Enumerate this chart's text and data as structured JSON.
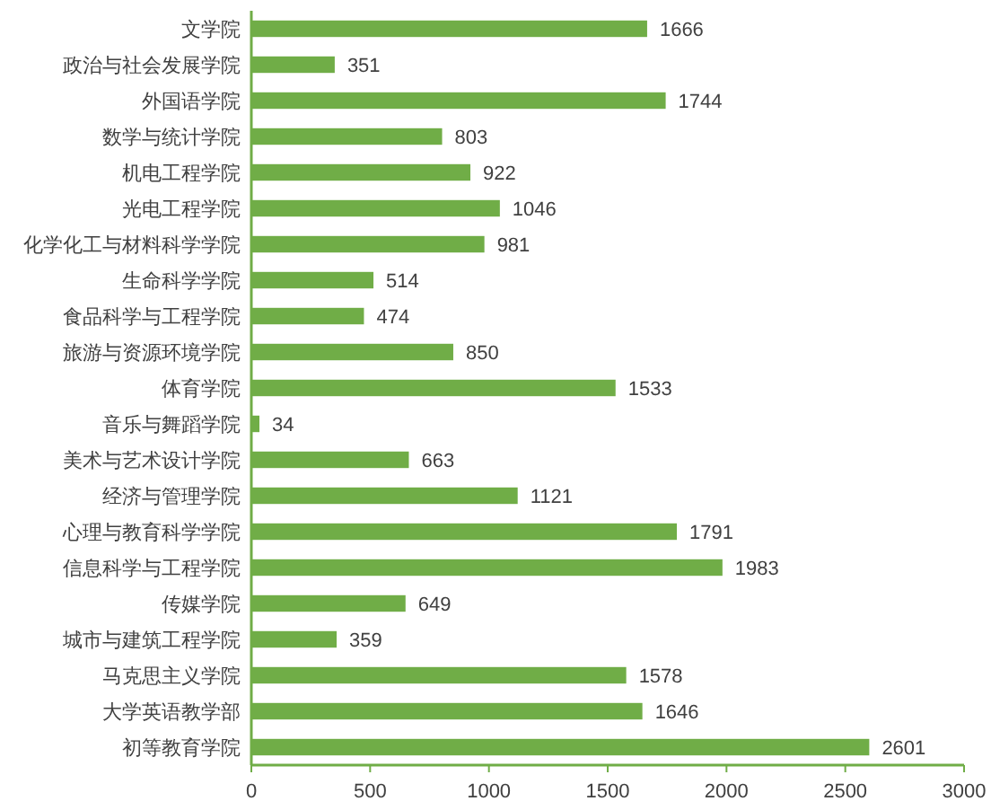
{
  "chart_data": {
    "type": "bar",
    "orientation": "horizontal",
    "categories": [
      "文学院",
      "政治与社会发展学院",
      "外国语学院",
      "数学与统计学院",
      "机电工程学院",
      "光电工程学院",
      "化学化工与材料科学学院",
      "生命科学学院",
      "食品科学与工程学院",
      "旅游与资源环境学院",
      "体育学院",
      "音乐与舞蹈学院",
      "美术与艺术设计学院",
      "经济与管理学院",
      "心理与教育科学学院",
      "信息科学与工程学院",
      "传媒学院",
      "城市与建筑工程学院",
      "马克思主义学院",
      "大学英语教学部",
      "初等教育学院"
    ],
    "values": [
      1666,
      351,
      1744,
      803,
      922,
      1046,
      981,
      514,
      474,
      850,
      1533,
      34,
      663,
      1121,
      1791,
      1983,
      649,
      359,
      1578,
      1646,
      2601
    ],
    "color": "#70ad47",
    "xlim": [
      0,
      3000
    ],
    "xticks": [
      0,
      500,
      1000,
      1500,
      2000,
      2500,
      3000
    ],
    "data_labels": true
  }
}
